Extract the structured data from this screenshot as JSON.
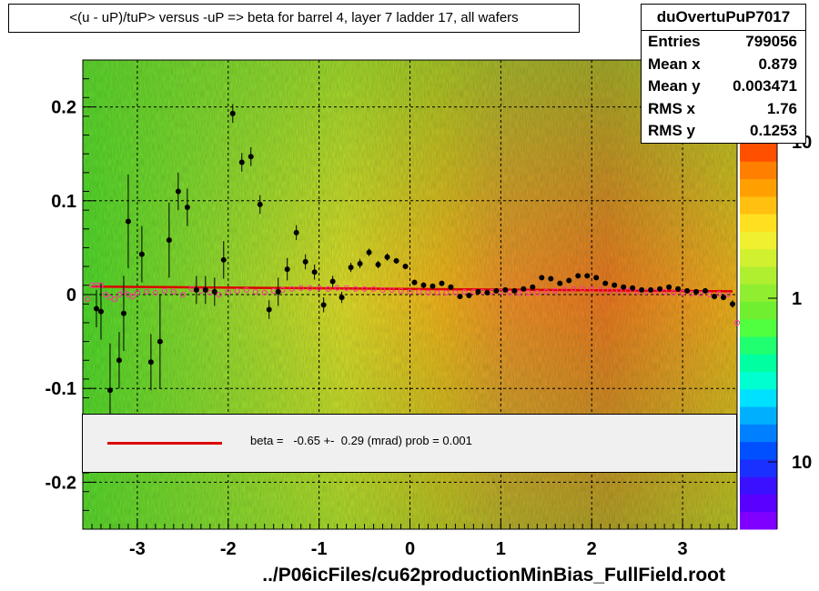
{
  "title": "<(u - uP)/tuP> versus  -uP => beta for barrel 4, layer 7 ladder 17, all wafers",
  "stats": {
    "name": "duOvertuPuP7017",
    "rows": [
      {
        "label": "Entries",
        "value": "799056"
      },
      {
        "label": "Mean x",
        "value": "0.879"
      },
      {
        "label": "Mean y",
        "value": "0.003471"
      },
      {
        "label": "RMS x",
        "value": "1.76"
      },
      {
        "label": "RMS y",
        "value": "0.1253"
      }
    ]
  },
  "legend": {
    "text": "beta =   -0.65 +-  0.29 (mrad) prob = 0.001",
    "line_color": "#dd0000"
  },
  "xlabel": "../P06icFiles/cu62productionMinBias_FullField.root",
  "chart_data": {
    "type": "scatter",
    "xlim": [
      -3.6,
      3.6
    ],
    "ylim": [
      -0.25,
      0.25
    ],
    "grid": true,
    "x_ticks": [
      -3,
      -2,
      -1,
      0,
      1,
      2,
      3
    ],
    "x_tick_labels": [
      "-3",
      "-2",
      "-1",
      "0",
      "1",
      "2",
      "3"
    ],
    "y_ticks": [
      -0.2,
      -0.1,
      0,
      0.1,
      0.2
    ],
    "y_tick_labels": [
      "-0.2",
      "-0.1",
      "0",
      "0.1",
      "0.2"
    ],
    "colorbar": {
      "scale": "log",
      "tick_labels": [
        "10",
        "1",
        "10"
      ],
      "colors": [
        "#7f00ff",
        "#5a00ff",
        "#3a10ff",
        "#1a30ff",
        "#0050ff",
        "#0080ff",
        "#00b0ff",
        "#00e0ff",
        "#00ffd0",
        "#00ffa0",
        "#20ff70",
        "#50ff40",
        "#70ee30",
        "#90ee30",
        "#b0ee30",
        "#d0f030",
        "#f0f030",
        "#ffe020",
        "#ffc010",
        "#ffa000",
        "#ff8000",
        "#ff5000"
      ]
    },
    "mean_points": {
      "color": "#000000",
      "x": [
        -3.45,
        -3.4,
        -3.3,
        -3.2,
        -3.15,
        -3.1,
        -2.95,
        -2.85,
        -2.75,
        -2.65,
        -2.55,
        -2.45,
        -2.35,
        -2.25,
        -2.15,
        -2.05,
        -1.95,
        -1.85,
        -1.75,
        -1.65,
        -1.55,
        -1.45,
        -1.35,
        -1.25,
        -1.15,
        -1.05,
        -0.95,
        -0.85,
        -0.75,
        -0.65,
        -0.55,
        -0.45,
        -0.35,
        -0.25,
        -0.15,
        -0.05,
        0.05,
        0.15,
        0.25,
        0.35,
        0.45,
        0.55,
        0.65,
        0.75,
        0.85,
        0.95,
        1.05,
        1.15,
        1.25,
        1.35,
        1.45,
        1.55,
        1.65,
        1.75,
        1.85,
        1.95,
        2.05,
        2.15,
        2.25,
        2.35,
        2.45,
        2.55,
        2.65,
        2.75,
        2.85,
        2.95,
        3.05,
        3.15,
        3.25,
        3.35,
        3.45,
        3.55
      ],
      "y": [
        -0.015,
        -0.018,
        -0.102,
        -0.07,
        -0.02,
        0.078,
        0.043,
        -0.072,
        -0.05,
        0.058,
        0.11,
        0.093,
        0.005,
        0.005,
        0.003,
        0.037,
        0.193,
        0.141,
        0.147,
        0.096,
        -0.016,
        0.003,
        0.027,
        0.066,
        0.035,
        0.024,
        -0.011,
        0.014,
        -0.003,
        0.029,
        0.033,
        0.045,
        0.032,
        0.04,
        0.036,
        0.03,
        0.013,
        0.01,
        0.009,
        0.012,
        0.008,
        -0.002,
        -0.001,
        0.003,
        0.002,
        0.004,
        0.005,
        0.004,
        0.006,
        0.008,
        0.018,
        0.017,
        0.012,
        0.015,
        0.02,
        0.02,
        0.018,
        0.012,
        0.01,
        0.008,
        0.007,
        0.005,
        0.005,
        0.006,
        0.008,
        0.006,
        0.004,
        0.003,
        0.004,
        -0.002,
        -0.003,
        -0.01
      ],
      "err": [
        0.02,
        0.03,
        0.05,
        0.03,
        0.04,
        0.05,
        0.03,
        0.03,
        0.05,
        0.04,
        0.02,
        0.02,
        0.015,
        0.015,
        0.015,
        0.02,
        0.01,
        0.01,
        0.01,
        0.01,
        0.01,
        0.015,
        0.012,
        0.008,
        0.008,
        0.008,
        0.008,
        0.006,
        0.006,
        0.005,
        0.005,
        0.004,
        0.004,
        0.004,
        0.003,
        0.003,
        0.003,
        0.003,
        0.002,
        0.002,
        0.002,
        0.002,
        0.002,
        0.002,
        0.002,
        0.002,
        0.002,
        0.002,
        0.002,
        0.002,
        0.002,
        0.002,
        0.002,
        0.002,
        0.002,
        0.002,
        0.002,
        0.002,
        0.002,
        0.002,
        0.002,
        0.002,
        0.002,
        0.002,
        0.002,
        0.002,
        0.002,
        0.002,
        0.002,
        0.003,
        0.003,
        0.004
      ]
    },
    "median_points": {
      "color": "#ff3399",
      "x": [
        -3.55,
        -3.5,
        -3.45,
        -3.4,
        -3.35,
        -3.3,
        -3.25,
        -3.2,
        -3.15,
        -3.1,
        -3.05,
        -3.0,
        -2.9,
        -2.8,
        -2.7,
        -2.6,
        -2.5,
        -2.4,
        -2.3,
        -2.2,
        -2.1,
        -2.0,
        -1.9,
        -1.8,
        -1.7,
        -1.6,
        -1.5,
        -1.4,
        -1.3,
        -1.2,
        -1.1,
        -1.0,
        -0.9,
        -0.8,
        -0.7,
        -0.6,
        -0.5,
        -0.4,
        -0.3,
        -0.2,
        -0.1,
        0.0,
        0.1,
        0.2,
        0.3,
        0.4,
        0.5,
        0.6,
        0.7,
        0.8,
        0.9,
        1.0,
        1.1,
        1.2,
        1.3,
        1.4,
        1.5,
        1.6,
        1.7,
        1.8,
        1.9,
        2.0,
        2.1,
        2.2,
        2.3,
        2.4,
        2.5,
        2.6,
        2.7,
        2.8,
        2.9,
        3.0,
        3.1,
        3.2,
        3.3,
        3.4,
        3.5,
        3.6
      ],
      "y": [
        -0.005,
        0.01,
        0.01,
        0.01,
        0.0,
        -0.003,
        -0.005,
        0.0,
        0.003,
        0.0,
        -0.002,
        0.002,
        0.003,
        0.002,
        0.004,
        0.003,
        0.0,
        0.006,
        0.004,
        0.002,
        0.0,
        0.003,
        0.004,
        0.005,
        0.003,
        0.002,
        0.004,
        0.005,
        0.006,
        0.007,
        0.007,
        0.007,
        0.006,
        0.007,
        0.007,
        0.006,
        0.006,
        0.006,
        0.005,
        0.005,
        0.004,
        0.003,
        0.003,
        0.002,
        0.002,
        0.002,
        0.002,
        0.003,
        0.003,
        0.003,
        0.003,
        0.003,
        0.002,
        0.002,
        0.002,
        0.002,
        0.003,
        0.004,
        0.005,
        0.006,
        0.006,
        0.006,
        0.005,
        0.004,
        0.004,
        0.004,
        0.003,
        0.003,
        0.003,
        0.003,
        0.002,
        0.002,
        0.001,
        0.001,
        0.0,
        0.001,
        0.0,
        -0.03
      ]
    },
    "fit_line": {
      "color": "#dd0000",
      "x": [
        -3.5,
        3.55
      ],
      "y": [
        0.0085,
        0.0035
      ]
    }
  }
}
